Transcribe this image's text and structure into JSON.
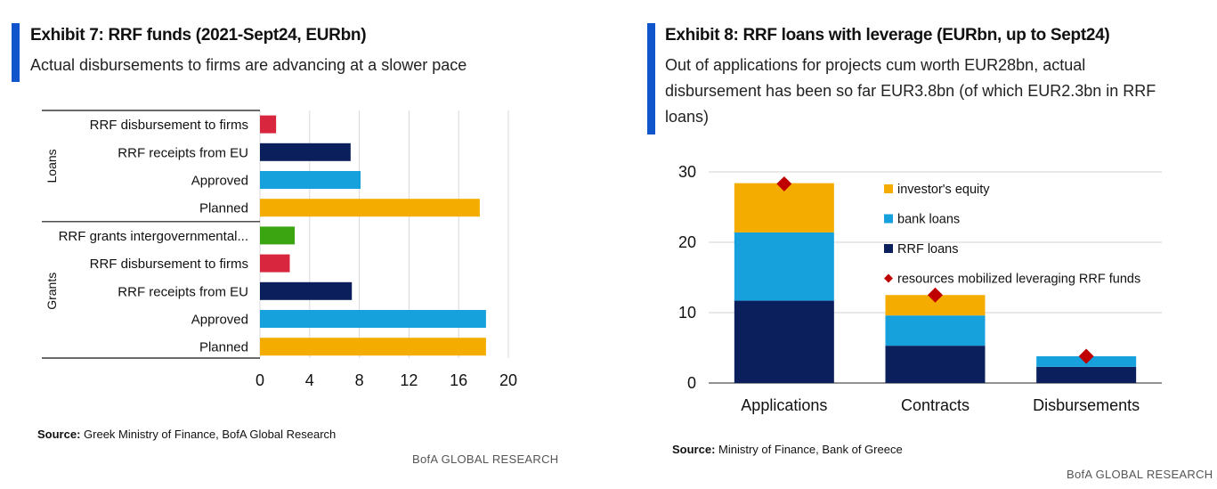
{
  "left": {
    "title": "Exhibit 7: RRF funds (2021-Sept24, EURbn)",
    "subtitle": "Actual disbursements to firms are advancing at a slower pace",
    "source_label": "Source:",
    "source_text": "Greek Ministry of Finance, BofA Global Research",
    "brand": "BofA GLOBAL RESEARCH",
    "colors": {
      "accent": "#1155cc",
      "grid": "#d9d9d9"
    }
  },
  "right": {
    "title": "Exhibit 8: RRF loans with leverage (EURbn, up to Sept24)",
    "subtitle_lines": [
      "Out of applications for projects cum worth EUR28bn, actual",
      "disbursement has been so far EUR3.8bn (of which EUR2.3bn in RRF",
      "loans)"
    ],
    "source_label": "Source:",
    "source_text": "Ministry of Finance, Bank of Greece",
    "brand": "BofA GLOBAL RESEARCH"
  },
  "chart_data": [
    {
      "type": "bar",
      "orientation": "horizontal",
      "groups": [
        {
          "name": "Loans",
          "categories": [
            "RRF disbursement to firms",
            "RRF receipts from EU",
            "Approved",
            "Planned"
          ],
          "values": [
            1.3,
            7.3,
            8.1,
            17.7
          ],
          "colors": [
            "#d7263d",
            "#0b1f5c",
            "#16a1dd",
            "#f5ac00"
          ]
        },
        {
          "name": "Grants",
          "categories": [
            "RRF grants intergovernmental...",
            "RRF disbursement to firms",
            "RRF receipts from EU",
            "Approved",
            "Planned"
          ],
          "values": [
            2.8,
            2.4,
            7.4,
            18.2,
            18.2
          ],
          "colors": [
            "#3aa510",
            "#d7263d",
            "#0b1f5c",
            "#16a1dd",
            "#f5ac00"
          ]
        }
      ],
      "xlim": [
        0,
        20
      ],
      "xticks": [
        "0",
        "4",
        "8",
        "12",
        "16",
        "20"
      ],
      "grid": true
    },
    {
      "type": "bar",
      "stacked": true,
      "categories": [
        "Applications",
        "Contracts",
        "Disbursements"
      ],
      "series": [
        {
          "name": "RRF loans",
          "values": [
            11.7,
            5.3,
            2.3
          ],
          "color": "#0b1f5c"
        },
        {
          "name": "bank loans",
          "values": [
            9.7,
            4.3,
            1.5
          ],
          "color": "#16a1dd"
        },
        {
          "name": "investor's equity",
          "values": [
            7.0,
            2.9,
            0.0
          ],
          "color": "#f5ac00"
        }
      ],
      "markers": {
        "name": "resources mobilized leveraging RRF funds",
        "values": [
          28.3,
          12.5,
          3.8
        ],
        "color": "#c00000"
      },
      "legend_order": [
        "investor's equity",
        "bank loans",
        "RRF loans",
        "resources mobilized leveraging RRF funds"
      ],
      "legend_position": "top-right inside",
      "ylim": [
        0,
        30
      ],
      "yticks": [
        "0",
        "10",
        "20",
        "30"
      ],
      "grid": true
    }
  ]
}
